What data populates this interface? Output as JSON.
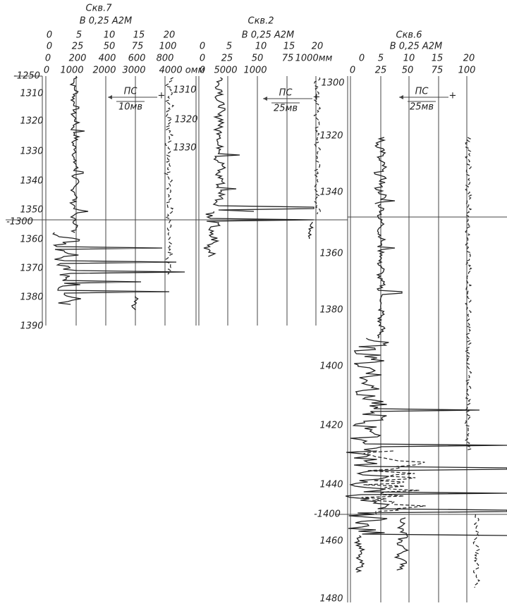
{
  "wells": [
    {
      "title": "Скв.7",
      "subtitle": "В 0,25 А2М",
      "scales": [
        [
          "0",
          "5",
          "10",
          "15",
          "20"
        ],
        [
          "0",
          "25",
          "50",
          "75",
          "100"
        ],
        [
          "0",
          "200",
          "400",
          "600",
          "800"
        ],
        [
          "0",
          "1000",
          "2000",
          "3000",
          "4000 омм"
        ]
      ],
      "ps_label": "ПС",
      "ps_unit": "10мв",
      "depth_labels": [
        "-1250",
        "1310",
        "1320",
        "1330",
        "1340",
        "1350",
        "-1300",
        "1360",
        "1370",
        "1380",
        "1390"
      ]
    },
    {
      "title": "Скв.2",
      "subtitle": "В 0,25 А2М",
      "scales": [
        [
          "0",
          "5",
          "10",
          "15",
          "20"
        ],
        [
          "0",
          "25",
          "50",
          "75",
          "1000мм"
        ],
        [
          "0",
          "5000",
          "1000"
        ]
      ],
      "ps_label": "ПС",
      "ps_unit": "25мв",
      "depth_labels": [
        "1310",
        "1320",
        "1330"
      ]
    },
    {
      "title": "Скв.6",
      "subtitle": "В 0,25 А2М",
      "scales": [
        [
          "0",
          "5",
          "10",
          "15",
          "20"
        ],
        [
          "0",
          "25",
          "50",
          "75",
          "100"
        ]
      ],
      "ps_label": "ПС",
      "ps_unit": "25мв",
      "depth_labels": [
        "1300",
        "1320",
        "1340",
        "1360",
        "1380",
        "1400",
        "1420",
        "1440",
        "-1400",
        "1460",
        "1480"
      ]
    }
  ]
}
